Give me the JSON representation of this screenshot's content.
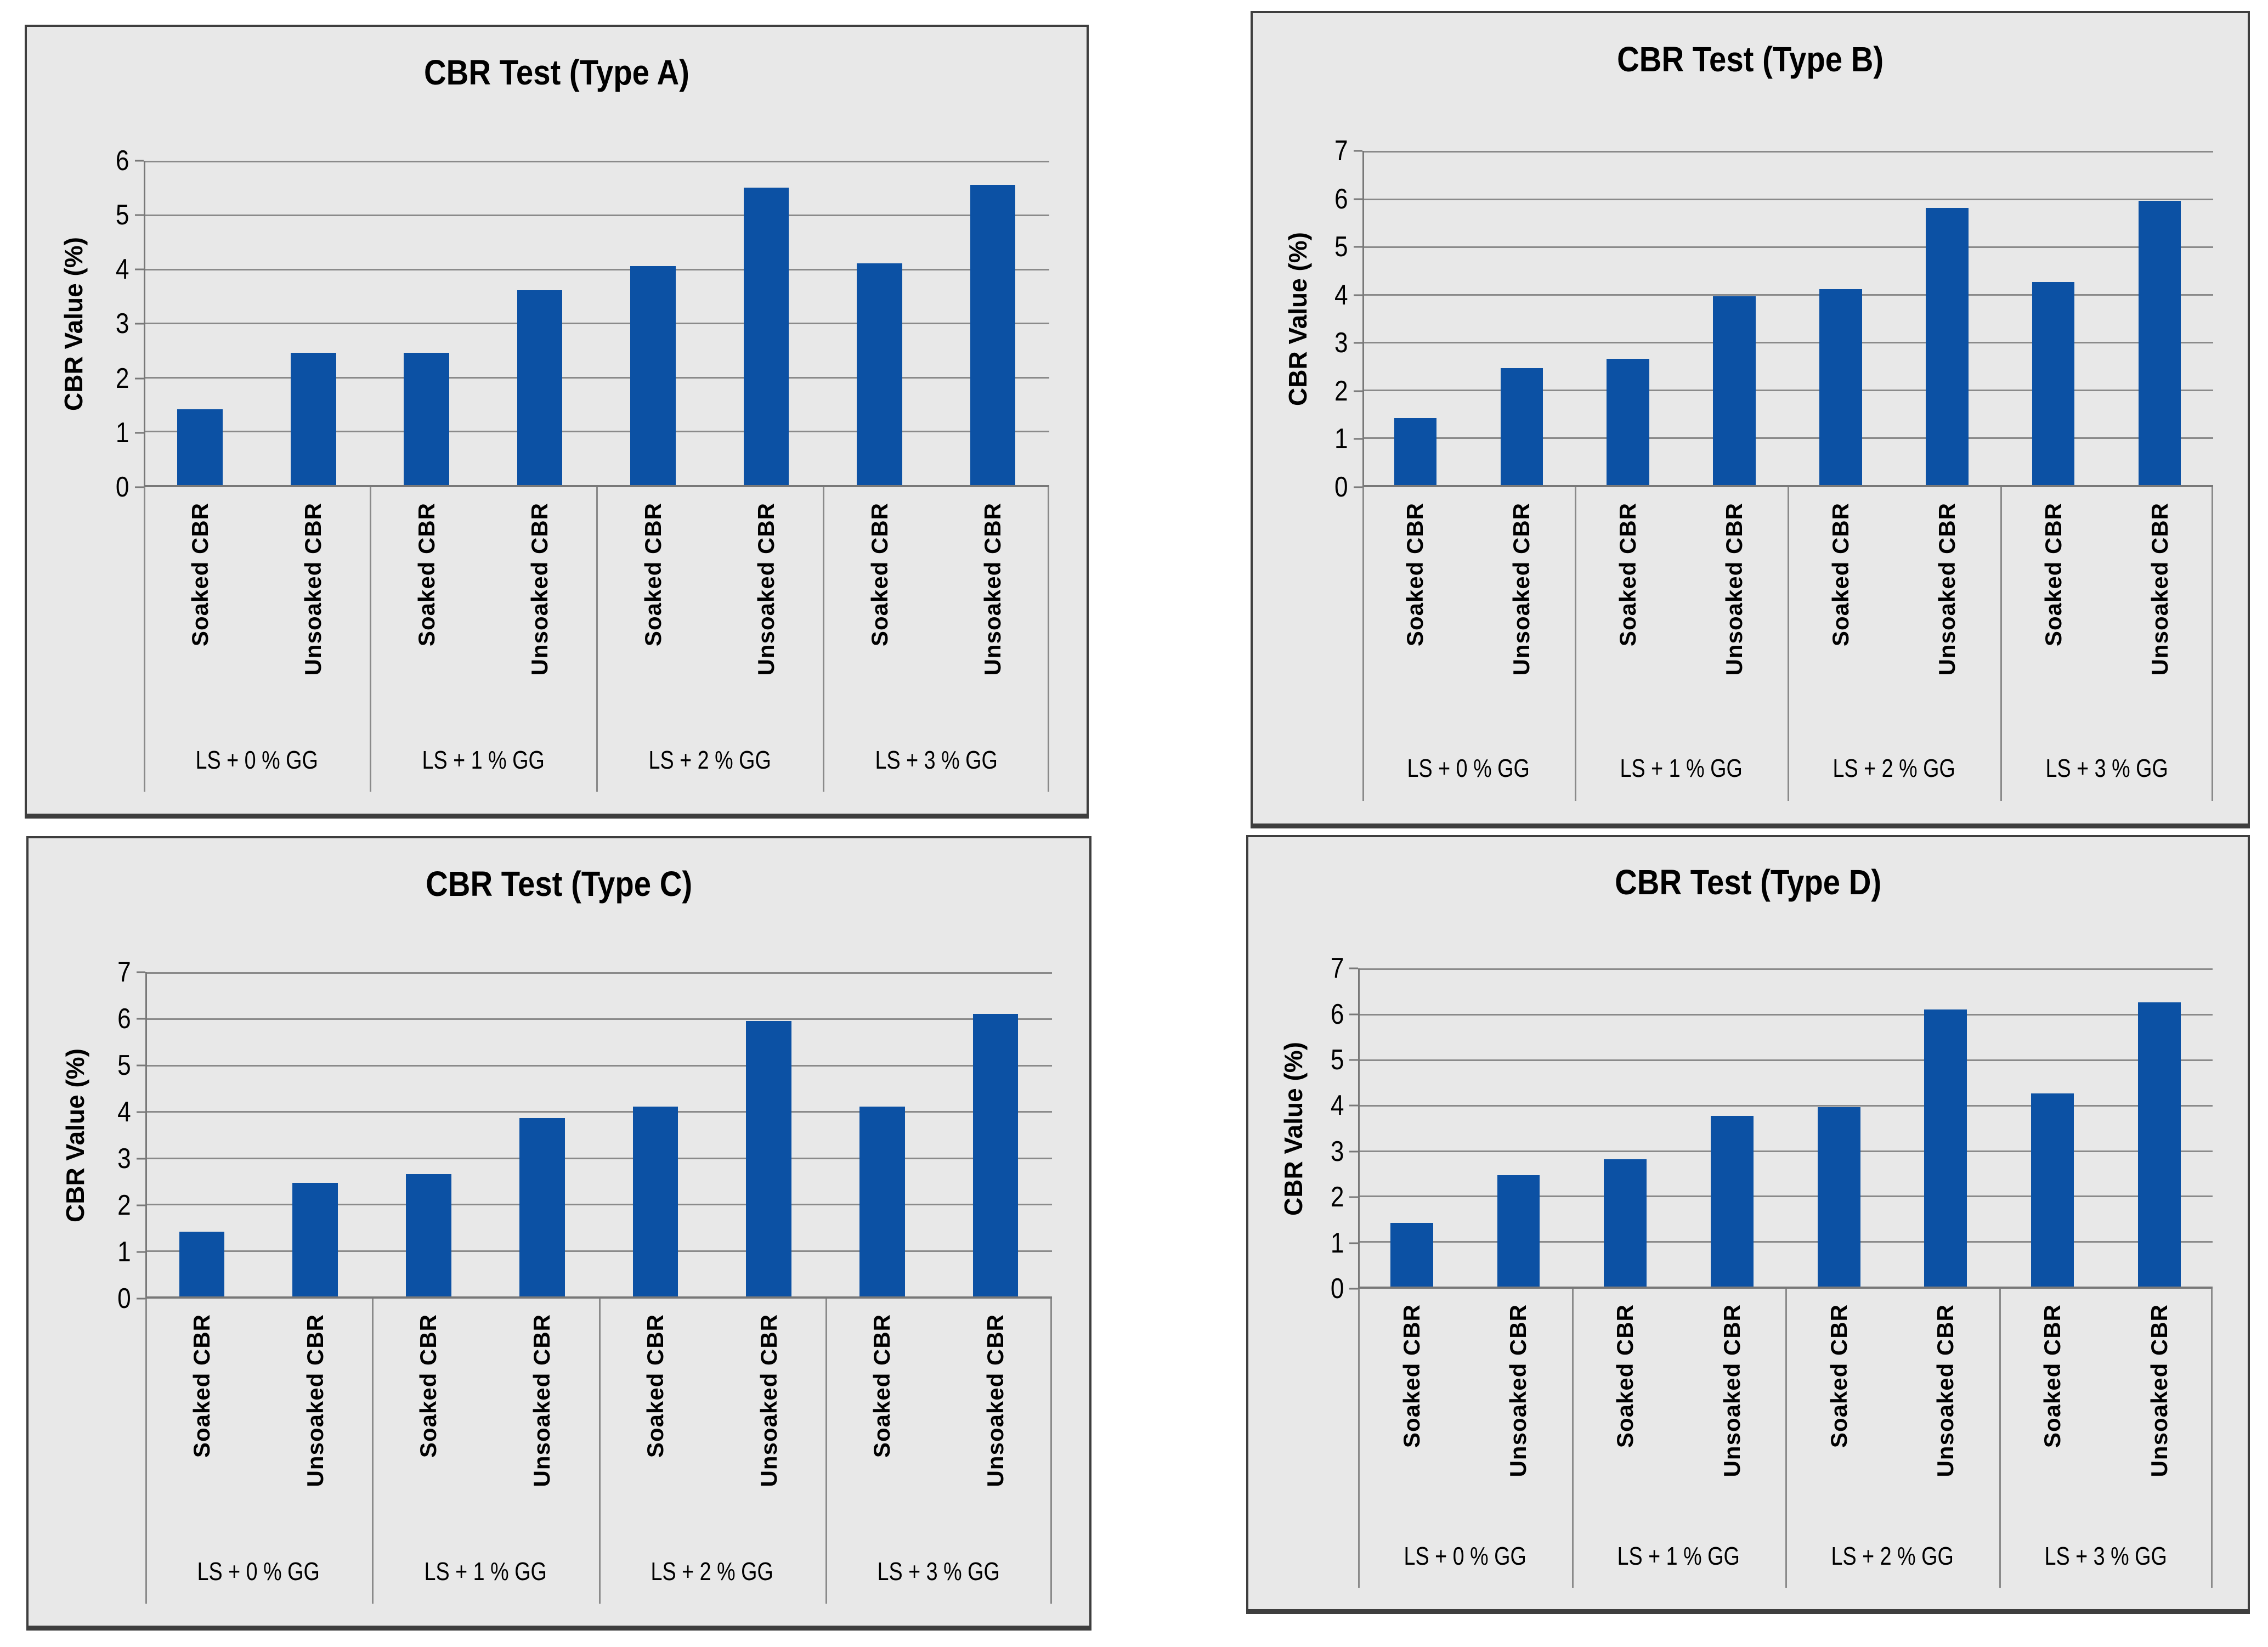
{
  "style": {
    "bar_color": "#0c51a4",
    "panel_background": "#e8e8e8",
    "gridline_color": "#8a8a8a",
    "border_color": "#3e3e3e"
  },
  "chart_data": [
    {
      "type": "bar",
      "title": "CBR Test (Type A)",
      "ylabel": "CBR Value (%)",
      "ylim": [
        0,
        6
      ],
      "ytick_step": 1,
      "grid": true,
      "legend": "none",
      "group_labels": [
        "LS + 0 % GG",
        "LS + 1 % GG",
        "LS + 2 % GG",
        "LS + 3 % GG"
      ],
      "bar_labels": [
        "Soaked CBR",
        "Unsoaked CBR"
      ],
      "values": [
        [
          1.4,
          2.45
        ],
        [
          2.45,
          3.6
        ],
        [
          4.05,
          5.5
        ],
        [
          4.1,
          5.55
        ]
      ]
    },
    {
      "type": "bar",
      "title": "CBR Test (Type B)",
      "ylabel": "CBR Value (%)",
      "ylim": [
        0,
        7
      ],
      "ytick_step": 1,
      "grid": true,
      "legend": "none",
      "group_labels": [
        "LS + 0 % GG",
        "LS + 1 % GG",
        "LS + 2 % GG",
        "LS + 3 % GG"
      ],
      "bar_labels": [
        "Soaked CBR",
        "Unsoaked CBR"
      ],
      "values": [
        [
          1.4,
          2.45
        ],
        [
          2.65,
          3.95
        ],
        [
          4.1,
          5.8
        ],
        [
          4.25,
          5.95
        ]
      ]
    },
    {
      "type": "bar",
      "title": "CBR Test (Type C)",
      "ylabel": "CBR Value (%)",
      "ylim": [
        0,
        7
      ],
      "ytick_step": 1,
      "grid": true,
      "legend": "none",
      "group_labels": [
        "LS + 0 % GG",
        "LS + 1 % GG",
        "LS + 2 % GG",
        "LS + 3 % GG"
      ],
      "bar_labels": [
        "Soaked CBR",
        "Unsoaked CBR"
      ],
      "values": [
        [
          1.4,
          2.45
        ],
        [
          2.65,
          3.85
        ],
        [
          4.1,
          5.95
        ],
        [
          4.1,
          6.1
        ]
      ]
    },
    {
      "type": "bar",
      "title": "CBR Test (Type D)",
      "ylabel": "CBR Value (%)",
      "ylim": [
        0,
        7
      ],
      "ytick_step": 1,
      "grid": true,
      "legend": "none",
      "group_labels": [
        "LS + 0 % GG",
        "LS + 1 % GG",
        "LS + 2 % GG",
        "LS + 3 % GG"
      ],
      "bar_labels": [
        "Soaked CBR",
        "Unsoaked CBR"
      ],
      "values": [
        [
          1.4,
          2.45
        ],
        [
          2.8,
          3.75
        ],
        [
          3.95,
          6.1
        ],
        [
          4.25,
          6.25
        ]
      ]
    }
  ]
}
